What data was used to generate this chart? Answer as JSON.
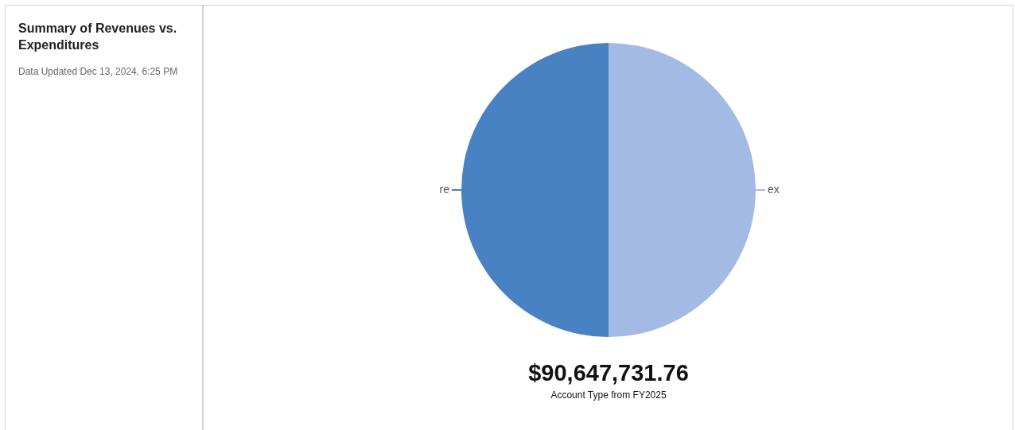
{
  "chart_data": {
    "type": "pie",
    "title": "Summary of Revenues vs. Expenditures",
    "subtitle": "Data Updated Dec 13, 2024, 6:25 PM",
    "categories": [
      "ex",
      "re"
    ],
    "values": [
      50,
      50
    ],
    "colors": [
      "#a3bbe4",
      "#4882c2"
    ],
    "legend": false,
    "annotations": [
      "$90,647,731.76",
      "Account Type from FY2025"
    ]
  }
}
